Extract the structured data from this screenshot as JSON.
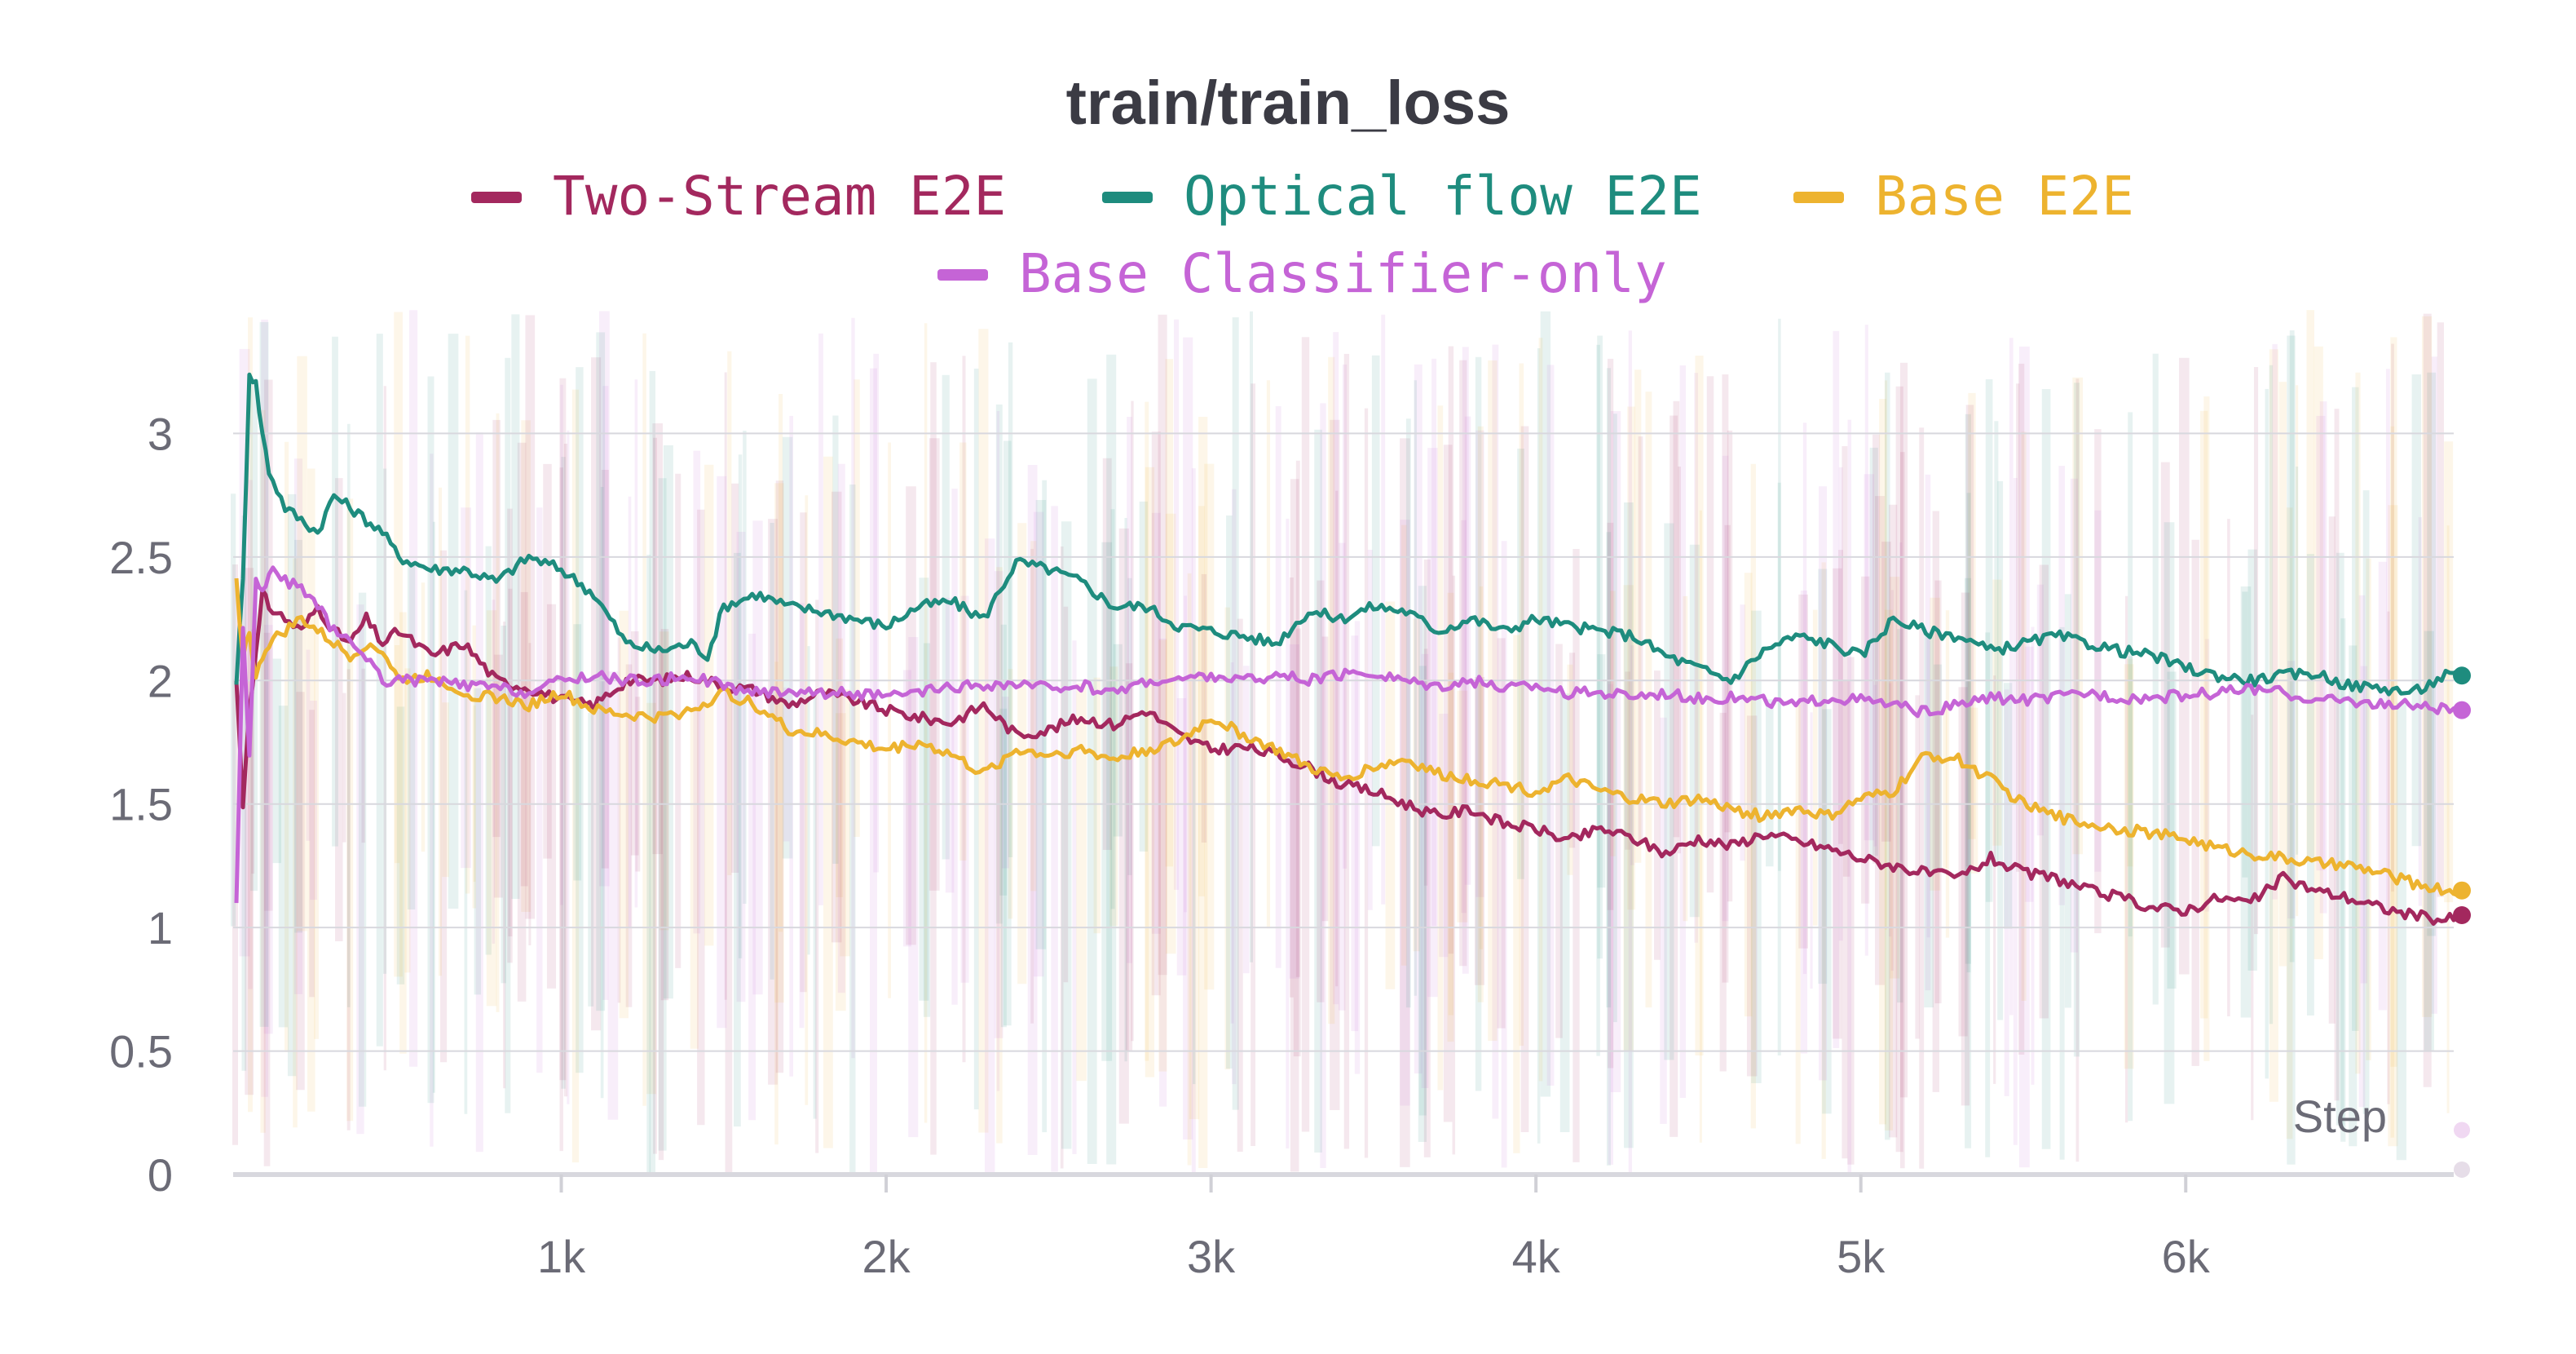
{
  "chart_data": {
    "type": "line",
    "title": "train/train_loss",
    "xlabel": "Step",
    "ylabel": "",
    "xlim": [
      0,
      6850
    ],
    "ylim": [
      0,
      3.5
    ],
    "x_ticks": [
      1000,
      2000,
      3000,
      4000,
      5000,
      6000
    ],
    "x_tick_labels": [
      "1k",
      "2k",
      "3k",
      "4k",
      "5k",
      "6k"
    ],
    "y_ticks": [
      0,
      0.5,
      1,
      1.5,
      2,
      2.5,
      3
    ],
    "y_tick_labels": [
      "0",
      "0.5",
      "1",
      "1.5",
      "2",
      "2.5",
      "3"
    ],
    "grid": true,
    "legend_position": "top",
    "series": [
      {
        "name": "Two-Stream E2E",
        "color": "#a3285e",
        "x": [
          0,
          20,
          40,
          60,
          80,
          100,
          150,
          200,
          250,
          300,
          350,
          400,
          450,
          500,
          600,
          700,
          800,
          900,
          1000,
          1100,
          1200,
          1300,
          1400,
          1500,
          1600,
          1700,
          1800,
          1900,
          2000,
          2100,
          2200,
          2300,
          2400,
          2500,
          2600,
          2700,
          2800,
          2900,
          3000,
          3100,
          3200,
          3300,
          3400,
          3500,
          3600,
          3700,
          3800,
          3900,
          4000,
          4100,
          4200,
          4300,
          4400,
          4500,
          4600,
          4700,
          4800,
          4900,
          5000,
          5100,
          5200,
          5300,
          5400,
          5500,
          5600,
          5700,
          5800,
          5900,
          6000,
          6100,
          6200,
          6300,
          6400,
          6500,
          6600,
          6700,
          6800,
          6850
        ],
        "values": [
          2.0,
          1.5,
          1.9,
          2.1,
          2.35,
          2.3,
          2.25,
          2.2,
          2.3,
          2.2,
          2.15,
          2.25,
          2.15,
          2.2,
          2.1,
          2.15,
          2.0,
          1.97,
          1.92,
          1.9,
          2.0,
          2.0,
          2.02,
          1.98,
          1.96,
          1.9,
          1.95,
          1.92,
          1.88,
          1.85,
          1.83,
          1.9,
          1.78,
          1.8,
          1.85,
          1.82,
          1.88,
          1.78,
          1.72,
          1.73,
          1.7,
          1.65,
          1.58,
          1.55,
          1.5,
          1.45,
          1.48,
          1.42,
          1.4,
          1.35,
          1.4,
          1.36,
          1.3,
          1.36,
          1.33,
          1.38,
          1.35,
          1.32,
          1.28,
          1.25,
          1.22,
          1.2,
          1.28,
          1.22,
          1.2,
          1.15,
          1.12,
          1.08,
          1.07,
          1.12,
          1.1,
          1.2,
          1.15,
          1.12,
          1.08,
          1.05,
          1.03,
          1.05
        ]
      },
      {
        "name": "Optical flow E2E",
        "color": "#1e8c7e",
        "x": [
          0,
          20,
          40,
          60,
          80,
          100,
          150,
          200,
          250,
          300,
          350,
          400,
          450,
          500,
          600,
          700,
          800,
          900,
          1000,
          1100,
          1200,
          1300,
          1400,
          1450,
          1500,
          1600,
          1700,
          1800,
          1900,
          2000,
          2100,
          2200,
          2300,
          2400,
          2500,
          2600,
          2700,
          2800,
          2900,
          3000,
          3100,
          3200,
          3300,
          3400,
          3500,
          3600,
          3700,
          3800,
          3900,
          4000,
          4100,
          4200,
          4300,
          4400,
          4500,
          4600,
          4700,
          4800,
          4900,
          5000,
          5100,
          5200,
          5300,
          5400,
          5500,
          5600,
          5700,
          5800,
          5900,
          6000,
          6100,
          6200,
          6300,
          6400,
          6500,
          6600,
          6700,
          6800,
          6850
        ],
        "values": [
          2.0,
          2.4,
          3.25,
          3.2,
          3.0,
          2.85,
          2.7,
          2.65,
          2.6,
          2.75,
          2.7,
          2.65,
          2.6,
          2.5,
          2.45,
          2.45,
          2.4,
          2.5,
          2.45,
          2.35,
          2.15,
          2.12,
          2.15,
          2.1,
          2.3,
          2.35,
          2.3,
          2.28,
          2.25,
          2.22,
          2.3,
          2.32,
          2.25,
          2.48,
          2.45,
          2.4,
          2.3,
          2.3,
          2.22,
          2.2,
          2.18,
          2.15,
          2.28,
          2.25,
          2.3,
          2.28,
          2.2,
          2.25,
          2.2,
          2.25,
          2.22,
          2.2,
          2.18,
          2.1,
          2.05,
          2.0,
          2.12,
          2.18,
          2.15,
          2.1,
          2.25,
          2.2,
          2.18,
          2.12,
          2.15,
          2.18,
          2.15,
          2.12,
          2.1,
          2.05,
          2.02,
          2.0,
          2.02,
          2.03,
          1.98,
          1.97,
          1.95,
          2.02,
          2.02
        ]
      },
      {
        "name": "Base E2E",
        "color": "#edb32f",
        "x": [
          0,
          20,
          40,
          60,
          80,
          100,
          150,
          200,
          250,
          300,
          350,
          400,
          450,
          500,
          600,
          700,
          800,
          900,
          1000,
          1100,
          1200,
          1300,
          1400,
          1500,
          1600,
          1700,
          1800,
          1900,
          2000,
          2100,
          2200,
          2300,
          2400,
          2500,
          2600,
          2700,
          2800,
          2900,
          3000,
          3100,
          3200,
          3300,
          3400,
          3500,
          3600,
          3700,
          3800,
          3900,
          4000,
          4100,
          4200,
          4300,
          4400,
          4500,
          4600,
          4700,
          4800,
          4900,
          5000,
          5100,
          5200,
          5300,
          5400,
          5500,
          5600,
          5700,
          5800,
          5900,
          6000,
          6100,
          6200,
          6300,
          6400,
          6500,
          6600,
          6700,
          6800,
          6850
        ],
        "values": [
          2.4,
          2.1,
          2.2,
          2.0,
          2.1,
          2.15,
          2.2,
          2.25,
          2.2,
          2.15,
          2.1,
          2.15,
          2.12,
          2.0,
          2.02,
          1.95,
          1.93,
          1.9,
          1.95,
          1.88,
          1.86,
          1.85,
          1.88,
          1.95,
          1.9,
          1.8,
          1.78,
          1.75,
          1.72,
          1.75,
          1.7,
          1.62,
          1.72,
          1.7,
          1.72,
          1.68,
          1.72,
          1.75,
          1.85,
          1.78,
          1.72,
          1.65,
          1.6,
          1.65,
          1.68,
          1.62,
          1.6,
          1.58,
          1.55,
          1.6,
          1.55,
          1.52,
          1.5,
          1.52,
          1.48,
          1.45,
          1.48,
          1.45,
          1.52,
          1.55,
          1.7,
          1.68,
          1.6,
          1.5,
          1.45,
          1.42,
          1.4,
          1.38,
          1.36,
          1.32,
          1.3,
          1.28,
          1.26,
          1.25,
          1.22,
          1.18,
          1.15,
          1.15
        ]
      },
      {
        "name": "Base Classifier-only",
        "color": "#c564d6",
        "x": [
          0,
          20,
          40,
          60,
          80,
          100,
          150,
          200,
          250,
          300,
          350,
          400,
          450,
          500,
          600,
          700,
          800,
          900,
          1000,
          1100,
          1200,
          1300,
          1400,
          1500,
          1600,
          1700,
          1800,
          1900,
          2000,
          2100,
          2200,
          2300,
          2400,
          2500,
          2600,
          2700,
          2800,
          2900,
          3000,
          3100,
          3200,
          3300,
          3400,
          3500,
          3600,
          3700,
          3800,
          3900,
          4000,
          4100,
          4200,
          4300,
          4400,
          4500,
          4600,
          4700,
          4800,
          4900,
          5000,
          5100,
          5200,
          5300,
          5400,
          5500,
          5600,
          5700,
          5800,
          5900,
          6000,
          6100,
          6200,
          6300,
          6400,
          6500,
          6600,
          6700,
          6800,
          6850
        ],
        "values": [
          1.1,
          2.2,
          1.7,
          2.4,
          2.35,
          2.45,
          2.4,
          2.38,
          2.3,
          2.2,
          2.15,
          2.1,
          2.0,
          2.0,
          2.0,
          1.98,
          1.97,
          1.95,
          2.0,
          2.02,
          2.0,
          2.0,
          2.02,
          1.98,
          1.95,
          1.96,
          1.95,
          1.95,
          1.93,
          1.95,
          1.97,
          1.98,
          1.98,
          1.97,
          1.98,
          1.95,
          2.0,
          2.0,
          2.02,
          2.0,
          2.02,
          2.0,
          2.02,
          2.03,
          2.0,
          1.98,
          2.0,
          1.97,
          1.98,
          1.95,
          1.95,
          1.94,
          1.95,
          1.93,
          1.93,
          1.92,
          1.9,
          1.93,
          1.92,
          1.9,
          1.87,
          1.9,
          1.93,
          1.92,
          1.93,
          1.95,
          1.93,
          1.93,
          1.94,
          1.95,
          1.97,
          1.95,
          1.92,
          1.92,
          1.9,
          1.9,
          1.88,
          1.88
        ]
      }
    ]
  }
}
